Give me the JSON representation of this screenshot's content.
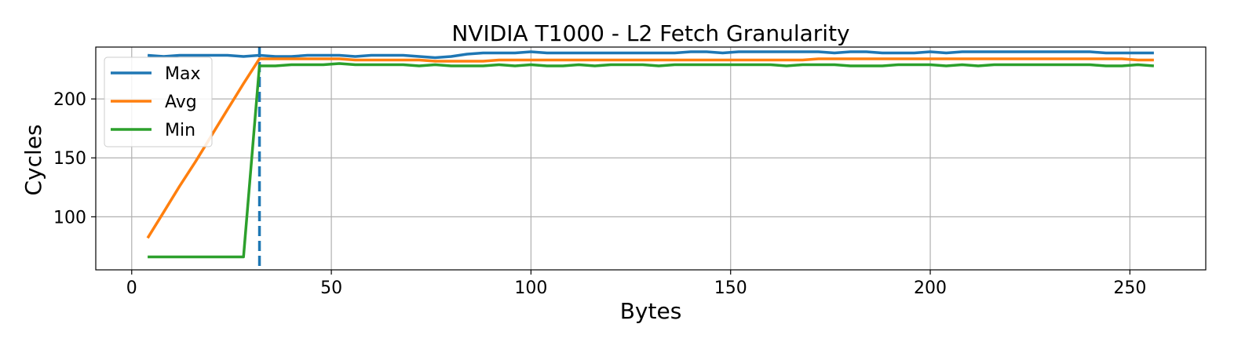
{
  "chart_data": {
    "type": "line",
    "title": "NVIDIA T1000 - L2 Fetch Granularity",
    "xlabel": "Bytes",
    "ylabel": "Cycles",
    "xlim": [
      -9,
      269
    ],
    "ylim": [
      55,
      244
    ],
    "xticks": [
      0,
      50,
      100,
      150,
      200,
      250
    ],
    "yticks": [
      100,
      150,
      200
    ],
    "grid": true,
    "legend_position": "upper-left",
    "vline": {
      "x": 32,
      "style": "dashed",
      "color": "#1f77b4"
    },
    "x": [
      4,
      8,
      12,
      16,
      20,
      24,
      28,
      32,
      36,
      40,
      44,
      48,
      52,
      56,
      60,
      64,
      68,
      72,
      76,
      80,
      84,
      88,
      92,
      96,
      100,
      104,
      108,
      112,
      116,
      120,
      124,
      128,
      132,
      136,
      140,
      144,
      148,
      152,
      156,
      160,
      164,
      168,
      172,
      176,
      180,
      184,
      188,
      192,
      196,
      200,
      204,
      208,
      212,
      216,
      220,
      224,
      228,
      232,
      236,
      240,
      244,
      248,
      252,
      256
    ],
    "series": [
      {
        "name": "Max",
        "color": "#1f77b4",
        "values": [
          237,
          236,
          237,
          237,
          237,
          237,
          236,
          237,
          236,
          236,
          237,
          237,
          237,
          236,
          237,
          237,
          237,
          236,
          235,
          236,
          238,
          239,
          239,
          239,
          240,
          239,
          239,
          239,
          239,
          239,
          239,
          239,
          239,
          239,
          240,
          240,
          239,
          240,
          240,
          240,
          240,
          240,
          240,
          239,
          240,
          240,
          239,
          239,
          239,
          240,
          239,
          240,
          240,
          240,
          240,
          240,
          240,
          240,
          240,
          240,
          239,
          239,
          239,
          239
        ]
      },
      {
        "name": "Avg",
        "color": "#ff7f0e",
        "values": [
          82,
          104,
          126,
          147,
          169,
          191,
          213,
          234,
          234,
          234,
          234,
          234,
          234,
          233,
          233,
          233,
          233,
          233,
          232,
          232,
          232,
          232,
          233,
          233,
          233,
          233,
          233,
          233,
          233,
          233,
          233,
          233,
          233,
          233,
          233,
          233,
          233,
          233,
          233,
          233,
          233,
          233,
          234,
          234,
          234,
          234,
          234,
          234,
          234,
          234,
          234,
          234,
          234,
          234,
          234,
          234,
          234,
          234,
          234,
          234,
          234,
          234,
          233,
          233
        ]
      },
      {
        "name": "Min",
        "color": "#2ca02c",
        "values": [
          66,
          66,
          66,
          66,
          66,
          66,
          66,
          228,
          228,
          229,
          229,
          229,
          230,
          229,
          229,
          229,
          229,
          228,
          229,
          228,
          228,
          228,
          229,
          228,
          229,
          228,
          228,
          229,
          228,
          229,
          229,
          229,
          228,
          229,
          229,
          229,
          229,
          229,
          229,
          229,
          228,
          229,
          229,
          229,
          228,
          228,
          228,
          229,
          229,
          229,
          228,
          229,
          228,
          229,
          229,
          229,
          229,
          229,
          229,
          229,
          228,
          228,
          229,
          228
        ]
      }
    ]
  }
}
